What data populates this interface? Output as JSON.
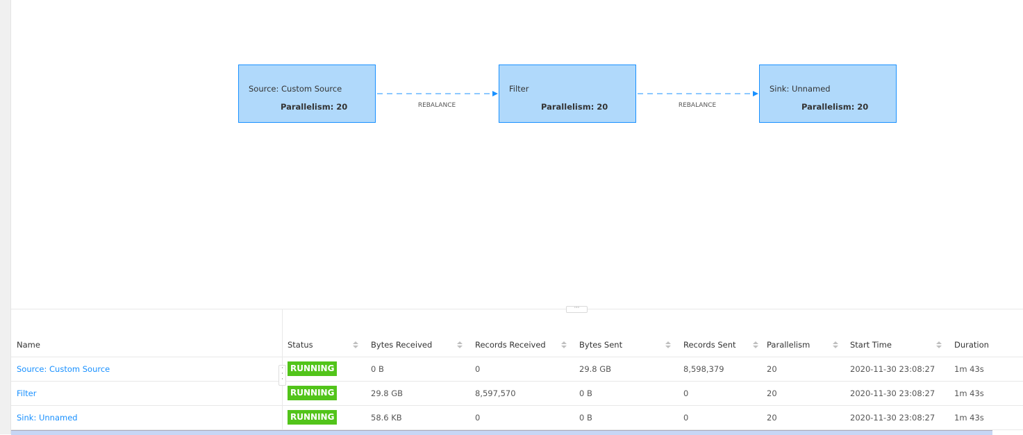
{
  "graph": {
    "nodes": [
      {
        "name": "Source: Custom Source",
        "parallelism": "Parallelism: 20"
      },
      {
        "name": "Filter",
        "parallelism": "Parallelism: 20"
      },
      {
        "name": "Sink: Unnamed",
        "parallelism": "Parallelism: 20"
      }
    ],
    "edges": [
      {
        "label": "REBALANCE"
      },
      {
        "label": "REBALANCE"
      }
    ],
    "colors": {
      "node_fill": "#b0d9fb",
      "node_border": "#1890ff",
      "edge": "#1890ff"
    }
  },
  "table": {
    "columns": [
      "Name",
      "Status",
      "Bytes Received",
      "Records Received",
      "Bytes Sent",
      "Records Sent",
      "Parallelism",
      "Start Time",
      "Duration"
    ],
    "rows": [
      {
        "name": "Source: Custom Source",
        "status": "RUNNING",
        "bytes_received": "0 B",
        "records_received": "0",
        "bytes_sent": "29.8 GB",
        "records_sent": "8,598,379",
        "parallelism": "20",
        "start_time": "2020-11-30 23:08:27",
        "duration": "1m 43s"
      },
      {
        "name": "Filter",
        "status": "RUNNING",
        "bytes_received": "29.8 GB",
        "records_received": "8,597,570",
        "bytes_sent": "0 B",
        "records_sent": "0",
        "parallelism": "20",
        "start_time": "2020-11-30 23:08:27",
        "duration": "1m 43s"
      },
      {
        "name": "Sink: Unnamed",
        "status": "RUNNING",
        "bytes_received": "58.6 KB",
        "records_received": "0",
        "bytes_sent": "0 B",
        "records_sent": "0",
        "parallelism": "20",
        "start_time": "2020-11-30 23:08:27",
        "duration": "1m 43s"
      }
    ],
    "status_color": "#52c41a",
    "link_color": "#1890ff"
  }
}
